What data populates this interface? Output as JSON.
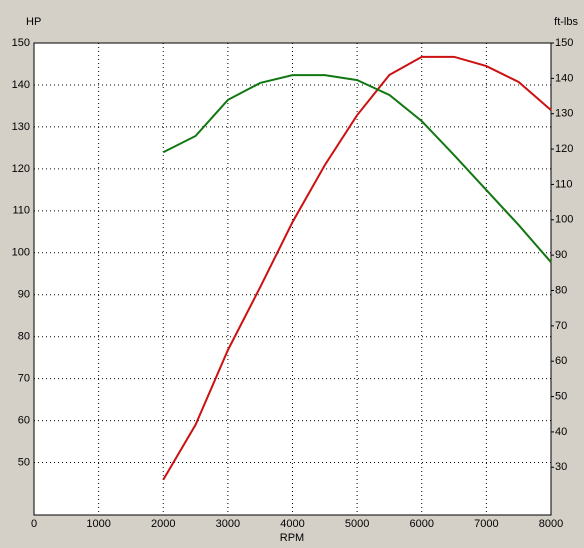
{
  "chart_data": {
    "type": "line",
    "x_label": "RPM",
    "y_label": "HP",
    "y2_label": "ft-lbs",
    "x": [
      2000,
      2500,
      3000,
      3500,
      4000,
      4500,
      5000,
      5500,
      6000,
      6500,
      7000,
      7500,
      8000
    ],
    "series": [
      {
        "color": "#cc1111",
        "values": [
          45.9,
          59,
          76.8,
          91.8,
          107.3,
          120.9,
          132.8,
          142.4,
          146.7,
          146.7,
          144.5,
          140.7,
          134
        ]
      },
      {
        "color": "#117711",
        "axis": "y2",
        "values": [
          119.1,
          123.7,
          133.9,
          138.7,
          140.9,
          140.9,
          139.5,
          135.3,
          127.9,
          118.3,
          108.4,
          98.5,
          88
        ]
      }
    ],
    "xlim": [
      0,
      8000
    ],
    "xticks": [
      0,
      1000,
      2000,
      3000,
      4000,
      5000,
      6000,
      7000,
      8000
    ],
    "ylim": [
      37.5,
      150
    ],
    "yticks": [
      50,
      60,
      70,
      80,
      90,
      100,
      110,
      120,
      130,
      140,
      150
    ],
    "y2lim": [
      16.5,
      150
    ],
    "y2ticks": [
      30,
      40,
      50,
      60,
      70,
      80,
      90,
      100,
      110,
      120,
      130,
      140,
      150
    ],
    "grid": true
  }
}
